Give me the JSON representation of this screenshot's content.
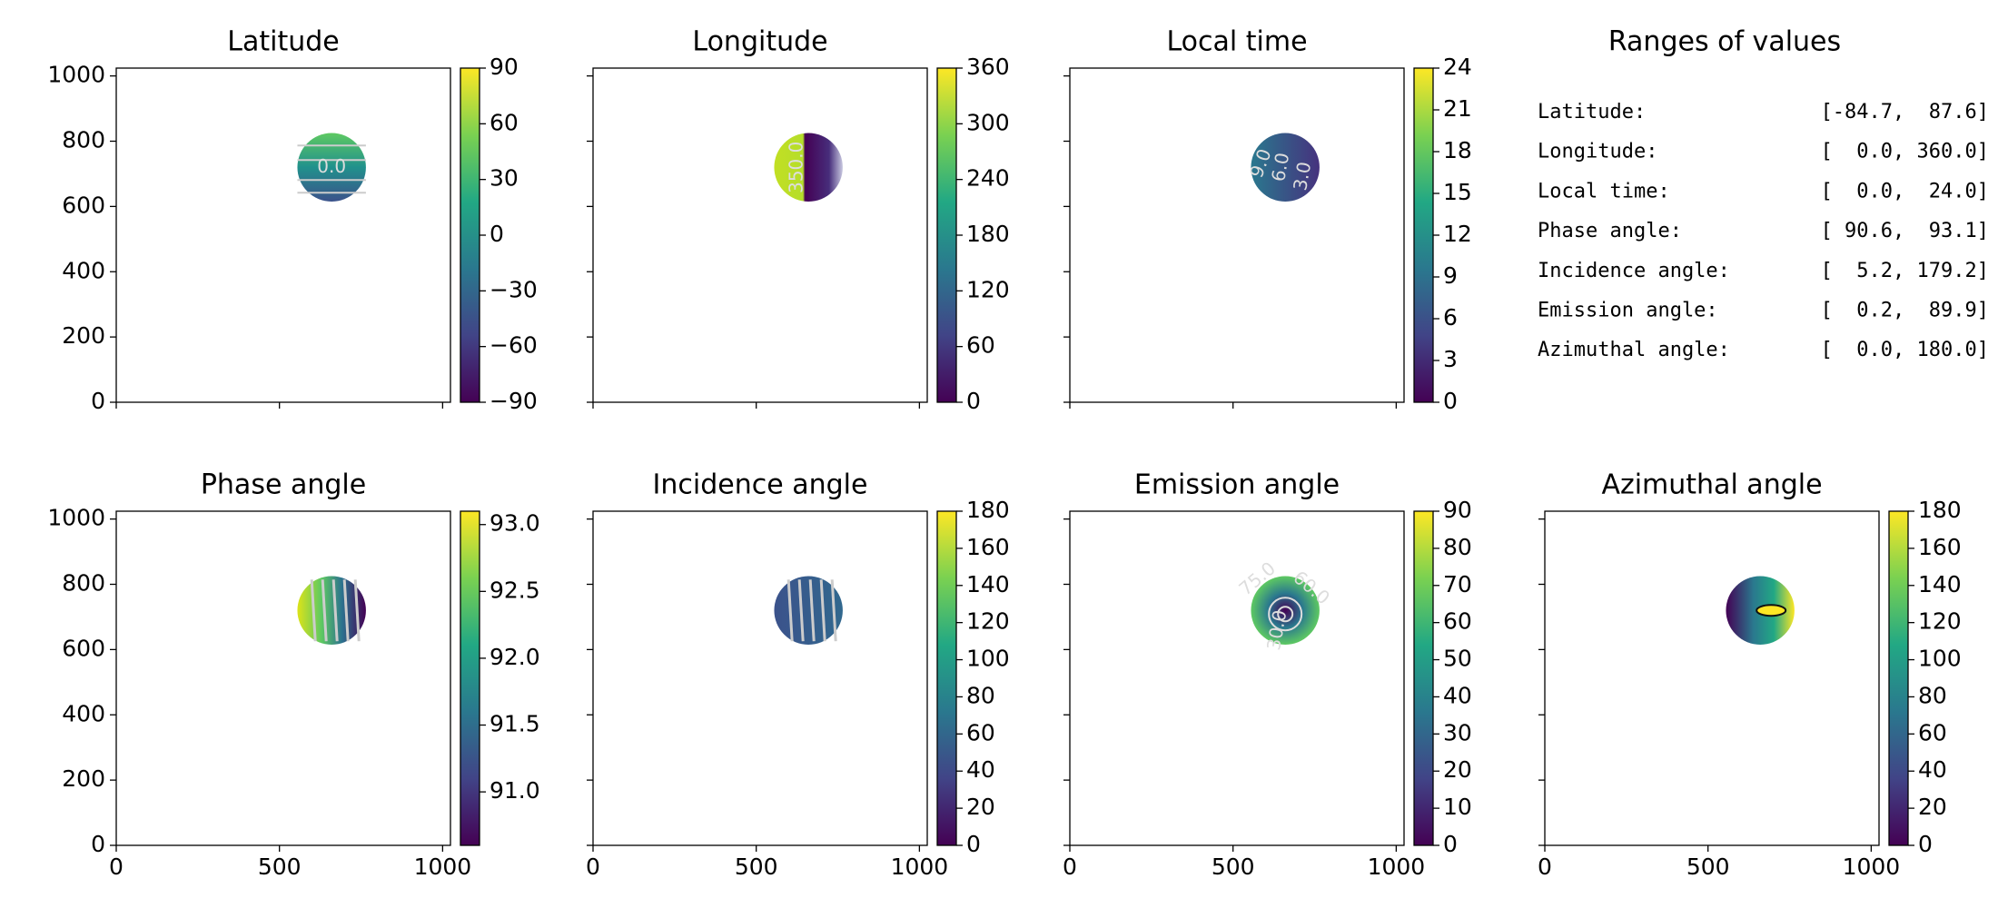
{
  "chart_data": [
    {
      "type": "image",
      "title": "Latitude",
      "xlim": [
        0,
        1024
      ],
      "ylim": [
        0,
        1024
      ],
      "xticks": [
        0,
        500,
        1000
      ],
      "yticks": [
        0,
        200,
        400,
        600,
        800,
        1000
      ],
      "show_xticklabels": false,
      "show_yticklabels": true,
      "colorbar": {
        "lim": [
          -90,
          90
        ],
        "ticks": [
          {
            "value": -90,
            "label": "−90"
          },
          {
            "value": -60,
            "label": "−60"
          },
          {
            "value": -30,
            "label": "−30"
          },
          0,
          30,
          60,
          90
        ]
      },
      "contour_labels": [
        "0.0"
      ]
    },
    {
      "type": "image",
      "title": "Longitude",
      "xlim": [
        0,
        1024
      ],
      "ylim": [
        0,
        1024
      ],
      "xticks": [
        0,
        500,
        1000
      ],
      "yticks": [
        0,
        200,
        400,
        600,
        800,
        1000
      ],
      "show_xticklabels": false,
      "show_yticklabels": false,
      "colorbar": {
        "lim": [
          0,
          360
        ],
        "ticks": [
          0,
          60,
          120,
          180,
          240,
          300,
          360
        ]
      },
      "contour_labels": [
        "350.0"
      ]
    },
    {
      "type": "image",
      "title": "Local time",
      "xlim": [
        0,
        1024
      ],
      "ylim": [
        0,
        1024
      ],
      "xticks": [
        0,
        500,
        1000
      ],
      "yticks": [
        0,
        200,
        400,
        600,
        800,
        1000
      ],
      "show_xticklabels": false,
      "show_yticklabels": false,
      "colorbar": {
        "lim": [
          0,
          24
        ],
        "ticks": [
          0,
          3,
          6,
          9,
          12,
          15,
          18,
          21,
          24
        ]
      },
      "contour_labels": [
        "9.0",
        "6.0",
        "3.0"
      ]
    },
    {
      "type": "text",
      "title": "Ranges of values",
      "rows": [
        {
          "label": "Latitude:",
          "range": "[-84.7,  87.6]"
        },
        {
          "label": "Longitude:",
          "range": "[  0.0, 360.0]"
        },
        {
          "label": "Local time:",
          "range": "[  0.0,  24.0]"
        },
        {
          "label": "Phase angle:",
          "range": "[ 90.6,  93.1]"
        },
        {
          "label": "Incidence angle:",
          "range": "[  5.2, 179.2]"
        },
        {
          "label": "Emission angle:",
          "range": "[  0.2,  89.9]"
        },
        {
          "label": "Azimuthal angle:",
          "range": "[  0.0, 180.0]"
        }
      ]
    },
    {
      "type": "image",
      "title": "Phase angle",
      "xlim": [
        0,
        1024
      ],
      "ylim": [
        0,
        1024
      ],
      "xticks": [
        0,
        500,
        1000
      ],
      "yticks": [
        0,
        200,
        400,
        600,
        800,
        1000
      ],
      "show_xticklabels": true,
      "show_yticklabels": true,
      "colorbar": {
        "lim": [
          90.6,
          93.1
        ],
        "ticks": [
          {
            "value": 91,
            "label": "91.0"
          },
          91.5,
          {
            "value": 92,
            "label": "92.0"
          },
          92.5,
          {
            "value": 93,
            "label": "93.0"
          }
        ]
      },
      "contour_labels": []
    },
    {
      "type": "image",
      "title": "Incidence angle",
      "xlim": [
        0,
        1024
      ],
      "ylim": [
        0,
        1024
      ],
      "xticks": [
        0,
        500,
        1000
      ],
      "yticks": [
        0,
        200,
        400,
        600,
        800,
        1000
      ],
      "show_xticklabels": true,
      "show_yticklabels": false,
      "colorbar": {
        "lim": [
          0,
          180
        ],
        "ticks": [
          0,
          20,
          40,
          60,
          80,
          100,
          120,
          140,
          160,
          180
        ]
      },
      "contour_labels": []
    },
    {
      "type": "image",
      "title": "Emission angle",
      "xlim": [
        0,
        1024
      ],
      "ylim": [
        0,
        1024
      ],
      "xticks": [
        0,
        500,
        1000
      ],
      "yticks": [
        0,
        200,
        400,
        600,
        800,
        1000
      ],
      "show_xticklabels": true,
      "show_yticklabels": false,
      "colorbar": {
        "lim": [
          0,
          90
        ],
        "ticks": [
          0,
          10,
          20,
          30,
          40,
          50,
          60,
          70,
          80,
          90
        ]
      },
      "contour_labels": [
        "75.0",
        "60.0",
        "30.0"
      ]
    },
    {
      "type": "image",
      "title": "Azimuthal angle",
      "xlim": [
        0,
        1024
      ],
      "ylim": [
        0,
        1024
      ],
      "xticks": [
        0,
        500,
        1000
      ],
      "yticks": [
        0,
        200,
        400,
        600,
        800,
        1000
      ],
      "show_xticklabels": true,
      "show_yticklabels": false,
      "colorbar": {
        "lim": [
          0,
          180
        ],
        "ticks": [
          0,
          20,
          40,
          60,
          80,
          100,
          120,
          140,
          160,
          180
        ]
      },
      "contour_labels": []
    }
  ]
}
